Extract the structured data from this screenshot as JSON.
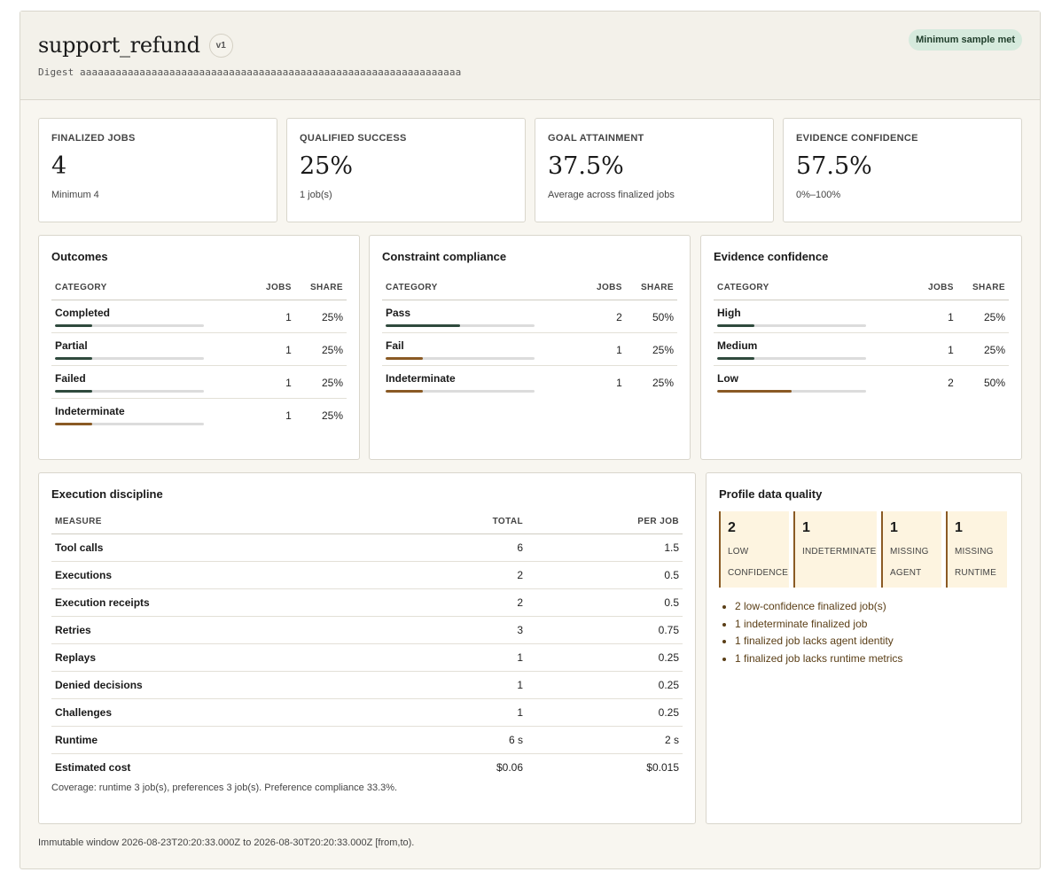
{
  "header": {
    "title": "support_refund",
    "version": "v1",
    "digest": "Digest aaaaaaaaaaaaaaaaaaaaaaaaaaaaaaaaaaaaaaaaaaaaaaaaaaaaaaaaaaaaaaaa",
    "badge": "Minimum sample met",
    "badge_color": "#d6eadd"
  },
  "stats": [
    {
      "label": "FINALIZED JOBS",
      "value": "4",
      "sub": "Minimum 4"
    },
    {
      "label": "QUALIFIED SUCCESS",
      "value": "25%",
      "sub": "1 job(s)"
    },
    {
      "label": "GOAL ATTAINMENT",
      "value": "37.5%",
      "sub": "Average across finalized jobs"
    },
    {
      "label": "EVIDENCE CONFIDENCE",
      "value": "57.5%",
      "sub": "0%–100%"
    }
  ],
  "colors": {
    "positive": "#2f4a3d",
    "negative": "#8a5a24"
  },
  "outcomes": {
    "title": "Outcomes",
    "headers": [
      "CATEGORY",
      "JOBS",
      "SHARE"
    ],
    "rows": [
      {
        "name": "Completed",
        "jobs": "1",
        "share": "25%",
        "fraction": 0.25,
        "tone": "positive"
      },
      {
        "name": "Partial",
        "jobs": "1",
        "share": "25%",
        "fraction": 0.25,
        "tone": "positive"
      },
      {
        "name": "Failed",
        "jobs": "1",
        "share": "25%",
        "fraction": 0.25,
        "tone": "positive"
      },
      {
        "name": "Indeterminate",
        "jobs": "1",
        "share": "25%",
        "fraction": 0.25,
        "tone": "negative"
      }
    ]
  },
  "compliance": {
    "title": "Constraint compliance",
    "headers": [
      "CATEGORY",
      "JOBS",
      "SHARE"
    ],
    "rows": [
      {
        "name": "Pass",
        "jobs": "2",
        "share": "50%",
        "fraction": 0.5,
        "tone": "positive"
      },
      {
        "name": "Fail",
        "jobs": "1",
        "share": "25%",
        "fraction": 0.25,
        "tone": "negative"
      },
      {
        "name": "Indeterminate",
        "jobs": "1",
        "share": "25%",
        "fraction": 0.25,
        "tone": "negative"
      }
    ]
  },
  "confidence": {
    "title": "Evidence confidence",
    "headers": [
      "CATEGORY",
      "JOBS",
      "SHARE"
    ],
    "rows": [
      {
        "name": "High",
        "jobs": "1",
        "share": "25%",
        "fraction": 0.25,
        "tone": "positive"
      },
      {
        "name": "Medium",
        "jobs": "1",
        "share": "25%",
        "fraction": 0.25,
        "tone": "positive"
      },
      {
        "name": "Low",
        "jobs": "2",
        "share": "50%",
        "fraction": 0.5,
        "tone": "negative"
      }
    ]
  },
  "execution": {
    "title": "Execution discipline",
    "headers": [
      "MEASURE",
      "TOTAL",
      "PER JOB"
    ],
    "rows": [
      {
        "measure": "Tool calls",
        "total": "6",
        "per_job": "1.5"
      },
      {
        "measure": "Executions",
        "total": "2",
        "per_job": "0.5"
      },
      {
        "measure": "Execution receipts",
        "total": "2",
        "per_job": "0.5"
      },
      {
        "measure": "Retries",
        "total": "3",
        "per_job": "0.75"
      },
      {
        "measure": "Replays",
        "total": "1",
        "per_job": "0.25"
      },
      {
        "measure": "Denied decisions",
        "total": "1",
        "per_job": "0.25"
      },
      {
        "measure": "Challenges",
        "total": "1",
        "per_job": "0.25"
      },
      {
        "measure": "Runtime",
        "total": "6 s",
        "per_job": "2 s"
      },
      {
        "measure": "Estimated cost",
        "total": "$0.06",
        "per_job": "$0.015"
      }
    ],
    "coverage": "Coverage: runtime 3 job(s), preferences 3 job(s). Preference compliance 33.3%."
  },
  "quality": {
    "title": "Profile data quality",
    "tiles": [
      {
        "num": "2",
        "label": "LOW CONFIDENCE"
      },
      {
        "num": "1",
        "label": "INDETERMINATE"
      },
      {
        "num": "1",
        "label": "MISSING AGENT"
      },
      {
        "num": "1",
        "label": "MISSING RUNTIME"
      }
    ],
    "notes": [
      "2 low-confidence finalized job(s)",
      "1 indeterminate finalized job",
      "1 finalized job lacks agent identity",
      "1 finalized job lacks runtime metrics"
    ]
  },
  "footer": "Immutable window 2026-08-23T20:20:33.000Z to 2026-08-30T20:20:33.000Z [from,to)."
}
